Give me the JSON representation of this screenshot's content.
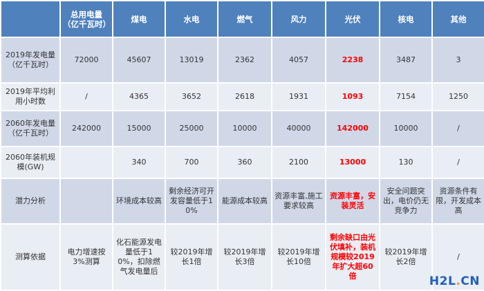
{
  "table": {
    "headers": [
      "",
      "总用电量（亿千瓦时）",
      "煤电",
      "水电",
      "燃气",
      "风力",
      "光伏",
      "核电",
      "其他"
    ],
    "rows": [
      {
        "label": "2019年发电量（亿千瓦时）",
        "cells": [
          "72000",
          "45607",
          "13019",
          "2362",
          "4057",
          "2238",
          "3487",
          "3"
        ]
      },
      {
        "label": "2019年平均利用小时数",
        "cells": [
          "/",
          "4365",
          "3652",
          "2618",
          "1931",
          "1093",
          "7154",
          "1250"
        ]
      },
      {
        "label": "2060年发电量（亿千瓦时）",
        "cells": [
          "242000",
          "15000",
          "25000",
          "10000",
          "40000",
          "142000",
          "10000",
          "/"
        ]
      },
      {
        "label": "2060年装机规模(GW)",
        "cells": [
          "",
          "340",
          "700",
          "360",
          "2100",
          "13000",
          "130",
          "/"
        ]
      },
      {
        "label": "潜力分析",
        "cells": [
          "",
          "环境成本较高",
          "剩余经济可开发容量低于10%",
          "能源成本较高",
          "资源丰富,施工要求较高",
          "资源丰富，安装灵活",
          "安全问题突出，电价仍无竞争力",
          "资源条件有限，开发成本高"
        ]
      },
      {
        "label": "测算依据",
        "cells": [
          "电力增速按3%测算",
          "化石能源发电量低于10%，扣除燃气发电量后",
          "较2019年增长1倍",
          "较2019年增长3倍",
          "较2019年增长10倍",
          "剩余缺口由光伏填补，装机规模较2019年扩大超60倍",
          "较2019年增长2倍",
          "/"
        ]
      }
    ]
  },
  "watermark": {
    "main": "H2L",
    "dot": ".",
    "suffix": "CN"
  },
  "colors": {
    "header_bg": "#4f81bd",
    "row_odd": "#d0d8e8",
    "row_even": "#e9edf4",
    "highlight": "#ff0000"
  }
}
